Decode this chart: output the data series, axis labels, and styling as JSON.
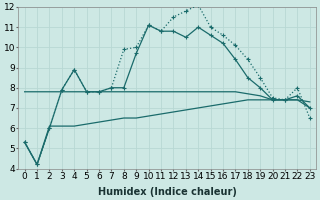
{
  "xlabel": "Humidex (Indice chaleur)",
  "x": [
    0,
    1,
    2,
    3,
    4,
    5,
    6,
    7,
    8,
    9,
    10,
    11,
    12,
    13,
    14,
    15,
    16,
    17,
    18,
    19,
    20,
    21,
    22,
    23
  ],
  "line_jagged_dot": [
    5.3,
    4.2,
    6.0,
    7.9,
    8.9,
    7.8,
    7.8,
    8.0,
    9.9,
    10.0,
    11.1,
    10.8,
    11.5,
    11.8,
    12.1,
    11.0,
    10.6,
    10.1,
    9.4,
    8.5,
    7.5,
    7.4,
    8.0,
    6.5
  ],
  "line_jagged_solid": [
    5.3,
    4.2,
    6.0,
    7.9,
    8.9,
    7.8,
    7.8,
    8.0,
    8.0,
    9.7,
    11.1,
    10.8,
    10.8,
    10.5,
    11.0,
    10.6,
    10.2,
    9.4,
    8.5,
    8.0,
    7.4,
    7.4,
    7.6,
    7.0
  ],
  "line_flat_upper": [
    7.8,
    7.8,
    7.8,
    7.8,
    7.8,
    7.8,
    7.8,
    7.8,
    7.8,
    7.8,
    7.8,
    7.8,
    7.8,
    7.8,
    7.8,
    7.8,
    7.8,
    7.8,
    7.7,
    7.6,
    7.4,
    7.4,
    7.4,
    7.3
  ],
  "line_rising": [
    5.3,
    4.2,
    6.1,
    6.1,
    6.1,
    6.2,
    6.3,
    6.4,
    6.5,
    6.5,
    6.6,
    6.7,
    6.8,
    6.9,
    7.0,
    7.1,
    7.2,
    7.3,
    7.4,
    7.4,
    7.4,
    7.4,
    7.4,
    7.0
  ],
  "ylim": [
    4,
    12
  ],
  "xlim_min": -0.5,
  "xlim_max": 23.5,
  "bg_color": "#cde8e4",
  "grid_color": "#b8d8d4",
  "line_color": "#1a6b6b",
  "tick_fontsize": 6.5
}
